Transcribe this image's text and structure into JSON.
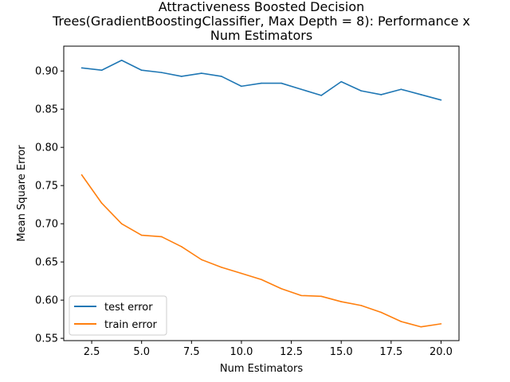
{
  "chart_data": {
    "type": "line",
    "title_lines": [
      "Attractiveness Boosted Decision",
      "Trees(GradientBoostingClassifier, Max Depth = 8): Performance x",
      "Num Estimators"
    ],
    "xlabel": "Num Estimators",
    "ylabel": "Mean Square Error",
    "xlim": [
      1.1,
      20.9
    ],
    "ylim": [
      0.547,
      0.9325
    ],
    "xticks": [
      2.5,
      5.0,
      7.5,
      10.0,
      12.5,
      15.0,
      17.5,
      20.0
    ],
    "xtick_labels": [
      "2.5",
      "5.0",
      "7.5",
      "10.0",
      "12.5",
      "15.0",
      "17.5",
      "20.0"
    ],
    "yticks": [
      0.55,
      0.6,
      0.65,
      0.7,
      0.75,
      0.8,
      0.85,
      0.9
    ],
    "ytick_labels": [
      "0.55",
      "0.60",
      "0.65",
      "0.70",
      "0.75",
      "0.80",
      "0.85",
      "0.90"
    ],
    "grid": false,
    "legend_position": "lower-left",
    "x": [
      2,
      3,
      4,
      5,
      6,
      7,
      8,
      9,
      10,
      11,
      12,
      13,
      14,
      15,
      16,
      17,
      18,
      19,
      20
    ],
    "series": [
      {
        "name": "test error",
        "color": "#1f77b4",
        "values": [
          0.904,
          0.901,
          0.914,
          0.901,
          0.898,
          0.893,
          0.897,
          0.893,
          0.88,
          0.884,
          0.884,
          0.876,
          0.868,
          0.886,
          0.874,
          0.869,
          0.876,
          0.869,
          0.862
        ]
      },
      {
        "name": "train error",
        "color": "#ff7f0e",
        "values": [
          0.764,
          0.727,
          0.7,
          0.685,
          0.683,
          0.67,
          0.653,
          0.643,
          0.635,
          0.627,
          0.615,
          0.606,
          0.605,
          0.598,
          0.593,
          0.584,
          0.572,
          0.565,
          0.569
        ]
      }
    ]
  }
}
